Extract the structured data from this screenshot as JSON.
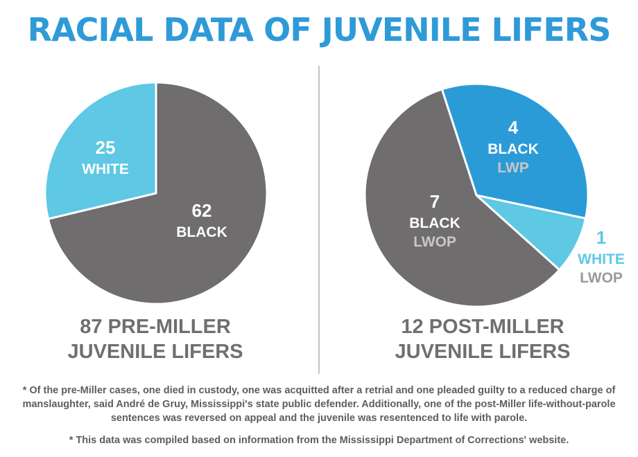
{
  "header": {
    "title": "RACIAL DATA OF JUVENILE LIFERS"
  },
  "colors": {
    "title": "#2f9ad8",
    "black_slice": "#706d6e",
    "white_slice": "#5ec8e5",
    "black_lwp_slice": "#2b9bd8",
    "label_white_text": "#ffffff",
    "label_lwop_text": "#c7c7c7",
    "outside_label_blue": "#5ec8e5",
    "outside_label_grey": "#9a9a9a"
  },
  "chart_data": [
    {
      "type": "pie",
      "caption_line1": "87 PRE-MILLER",
      "caption_line2": "JUVENILE LIFERS",
      "slices": [
        {
          "value": 62,
          "label": "BLACK",
          "sublabel": "",
          "color": "#706d6e"
        },
        {
          "value": 25,
          "label": "WHITE",
          "sublabel": "",
          "color": "#5ec8e5"
        }
      ]
    },
    {
      "type": "pie",
      "caption_line1": "12 POST-MILLER",
      "caption_line2": "JUVENILE LIFERS",
      "slices": [
        {
          "value": 4,
          "label": "BLACK",
          "sublabel": "LWP",
          "color": "#2b9bd8"
        },
        {
          "value": 1,
          "label": "WHITE",
          "sublabel": "LWOP",
          "color": "#5ec8e5"
        },
        {
          "value": 7,
          "label": "BLACK",
          "sublabel": "LWOP",
          "color": "#706d6e"
        }
      ]
    }
  ],
  "footnotes": [
    "* Of the pre-Miller cases, one died in custody, one was acquitted after a retrial and one pleaded guilty to a reduced charge of manslaughter, said André de Gruy, Mississippi's state public defender. Additionally, one of the post-Miller life-without-parole sentences was reversed on appeal and the juvenile was resentenced to life with parole.",
    "* This data was compiled based on information from the Mississippi Department of Corrections' website."
  ]
}
